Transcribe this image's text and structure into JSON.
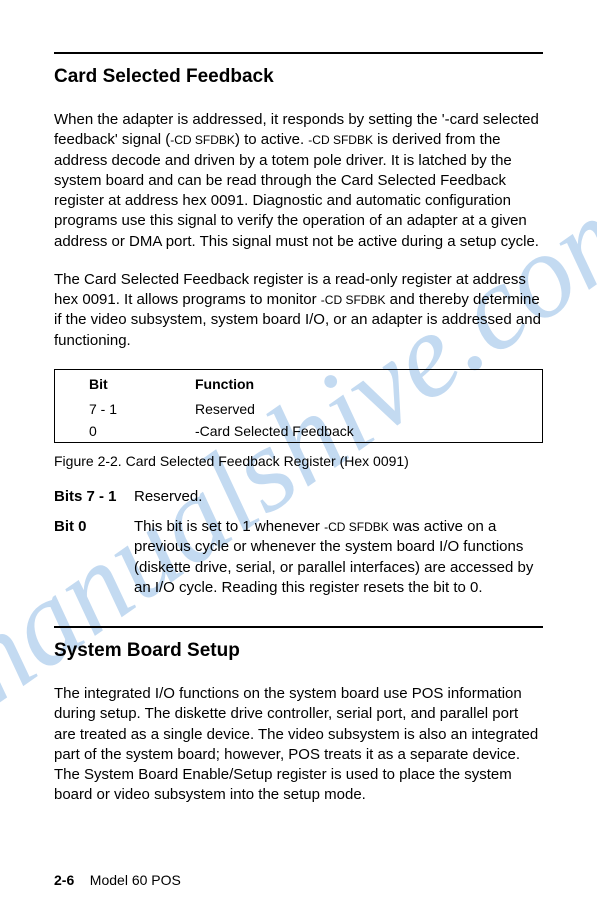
{
  "section1": {
    "title": "Card Selected Feedback",
    "para1_a": "When the adapter is addressed, it responds by setting the '-card selected feedback' signal (",
    "para1_sc1": "-CD SFDBK",
    "para1_b": ") to active. ",
    "para1_sc2": "-CD SFDBK",
    "para1_c": " is derived from the address decode and driven by a totem pole driver.  It is latched by the system board and can be read through the Card Selected Feedback register at address hex 0091.  Diagnostic and automatic configuration programs use this signal to verify the operation of an adapter at a given address or DMA port.  This signal must not be active during a setup cycle.",
    "para2_a": "The Card Selected Feedback register is a read-only register at address hex 0091.  It allows programs to monitor ",
    "para2_sc1": "-CD SFDBK",
    "para2_b": " and thereby determine if the video subsystem, system board I/O, or an adapter is addressed and functioning."
  },
  "table": {
    "hdr_bit": "Bit",
    "hdr_fn": "Function",
    "r1_bit": "7 - 1",
    "r1_fn": "Reserved",
    "r2_bit": "0",
    "r2_fn": "-Card Selected Feedback"
  },
  "caption": "Figure    2-2.  Card Selected Feedback Register (Hex 0091)",
  "bits": {
    "b71_label": "Bits 7 - 1",
    "b71_text": "Reserved.",
    "b0_label": "Bit 0",
    "b0_a": "This bit is set to 1 whenever ",
    "b0_sc1": "-CD SFDBK",
    "b0_b": " was active on a previous cycle or whenever the system board I/O functions (diskette drive, serial, or parallel interfaces) are accessed by an I/O cycle.  Reading this register resets the bit to 0."
  },
  "section2": {
    "title": "System Board Setup",
    "para1": "The integrated I/O functions on the system board use POS information during setup.  The diskette drive controller, serial port, and parallel port are treated as a single device.  The video subsystem is also an integrated part of the system board; however, POS treats it as a separate device.  The System Board Enable/Setup register is used to place the system board or video subsystem into the setup mode."
  },
  "footer": {
    "page_num": "2-6",
    "doc_title": "Model 60 POS"
  },
  "watermark_color": "#b9d4ef"
}
